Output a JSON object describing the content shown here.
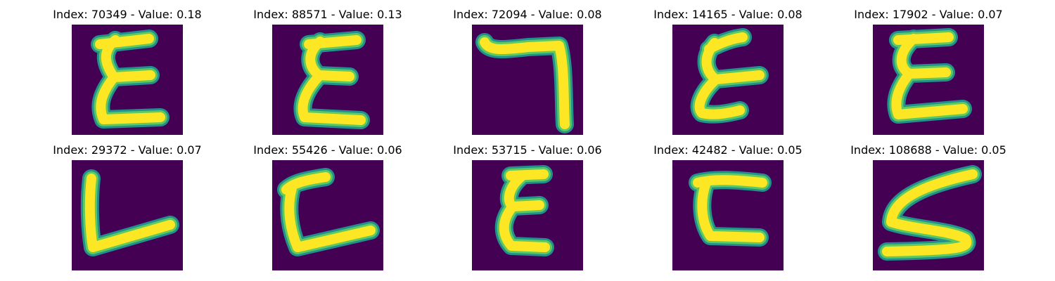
{
  "figure": {
    "colors": {
      "background": "#440154",
      "stroke_outer": "#21918c",
      "stroke_mid": "#5ec962",
      "stroke_core": "#fde725"
    },
    "panels": [
      {
        "title": "Index: 70349 - Value: 0.18",
        "glyph": "epsilon-shape-icon"
      },
      {
        "title": "Index: 88571 - Value: 0.13",
        "glyph": "epsilon-shape-icon"
      },
      {
        "title": "Index: 72094 - Value: 0.08",
        "glyph": "seven-shape-icon"
      },
      {
        "title": "Index: 14165 - Value: 0.08",
        "glyph": "epsilon-shape-icon"
      },
      {
        "title": "Index: 17902 - Value: 0.07",
        "glyph": "epsilon-shape-icon"
      },
      {
        "title": "Index: 29372 - Value: 0.07",
        "glyph": "l-shape-icon"
      },
      {
        "title": "Index: 55426 - Value: 0.06",
        "glyph": "c-shape-icon"
      },
      {
        "title": "Index: 53715 - Value: 0.06",
        "glyph": "epsilon-shape-icon"
      },
      {
        "title": "Index: 42482 - Value: 0.05",
        "glyph": "c-bold-shape-icon"
      },
      {
        "title": "Index: 108688 - Value: 0.05",
        "glyph": "s-shape-icon"
      }
    ]
  }
}
